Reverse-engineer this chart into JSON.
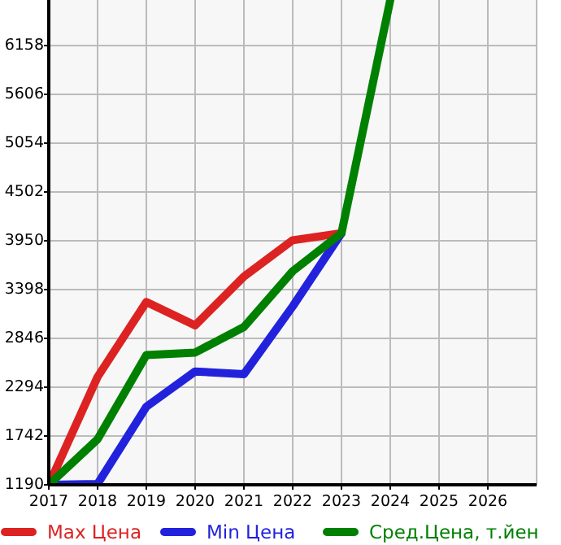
{
  "chart_data": {
    "type": "line",
    "x": [
      2017,
      2018,
      2019,
      2020,
      2021,
      2022,
      2023,
      2024
    ],
    "series": [
      {
        "name": "Max Цена",
        "color": "#dd2222",
        "values": [
          1190,
          2410,
          3257,
          2993,
          3545,
          3956,
          4036,
          null
        ]
      },
      {
        "name": "Min Цена",
        "color": "#2222dd",
        "values": [
          1190,
          1200,
          2073,
          2472,
          2441,
          3208,
          4036,
          null
        ]
      },
      {
        "name": "Сред.Цена, т.йен",
        "color": "#008000",
        "values": [
          1190,
          1705,
          2657,
          2686,
          2975,
          3606,
          4036,
          6673
        ]
      }
    ],
    "xlim": [
      2017,
      2027
    ],
    "xticks": [
      2017,
      2018,
      2019,
      2020,
      2021,
      2022,
      2023,
      2024,
      2025,
      2026
    ],
    "ylim": [
      1190,
      6673
    ],
    "yticks": [
      1190,
      1742,
      2294,
      2846,
      3398,
      3950,
      4502,
      5054,
      5606,
      6158
    ],
    "grid": true,
    "legend": "bottom",
    "marker": "none",
    "line_style": "solid"
  }
}
